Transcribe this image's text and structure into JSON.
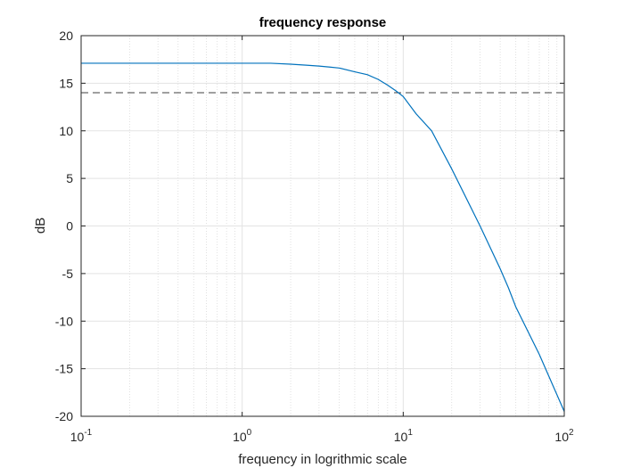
{
  "chart_data": {
    "type": "line",
    "title": "frequency response",
    "xlabel": "frequency in logrithmic scale",
    "ylabel": "dB",
    "xscale": "log",
    "xlim": [
      0.1,
      100
    ],
    "ylim": [
      -20,
      20
    ],
    "x_ticks": [
      {
        "base": "10",
        "exp": "-1",
        "value": 0.1
      },
      {
        "base": "10",
        "exp": "0",
        "value": 1
      },
      {
        "base": "10",
        "exp": "1",
        "value": 10
      },
      {
        "base": "10",
        "exp": "2",
        "value": 100
      }
    ],
    "y_ticks": [
      {
        "label": "20",
        "value": 20
      },
      {
        "label": "15",
        "value": 15
      },
      {
        "label": "10",
        "value": 10
      },
      {
        "label": "5",
        "value": 5
      },
      {
        "label": "0",
        "value": 0
      },
      {
        "label": "-5",
        "value": -5
      },
      {
        "label": "-10",
        "value": -10
      },
      {
        "label": "-15",
        "value": -15
      },
      {
        "label": "-20",
        "value": -20
      }
    ],
    "grid": true,
    "minor_grid": true,
    "series": [
      {
        "color": "#0072BD",
        "x": [
          0.1,
          0.2,
          0.5,
          1,
          1.5,
          2,
          2.5,
          3,
          3.5,
          4,
          5,
          6,
          7,
          8,
          9,
          10,
          12,
          15,
          20,
          30,
          40,
          45,
          50,
          70,
          100
        ],
        "y": [
          17.1,
          17.1,
          17.1,
          17.1,
          17.1,
          17.0,
          16.9,
          16.8,
          16.7,
          16.6,
          16.2,
          15.9,
          15.4,
          14.8,
          14.2,
          13.6,
          11.8,
          10.0,
          6.0,
          0.0,
          -4.5,
          -6.5,
          -8.5,
          -13.5,
          -19.5
        ]
      }
    ],
    "reference_line": {
      "y": 14,
      "style": "dashed",
      "color": "#404040"
    }
  }
}
